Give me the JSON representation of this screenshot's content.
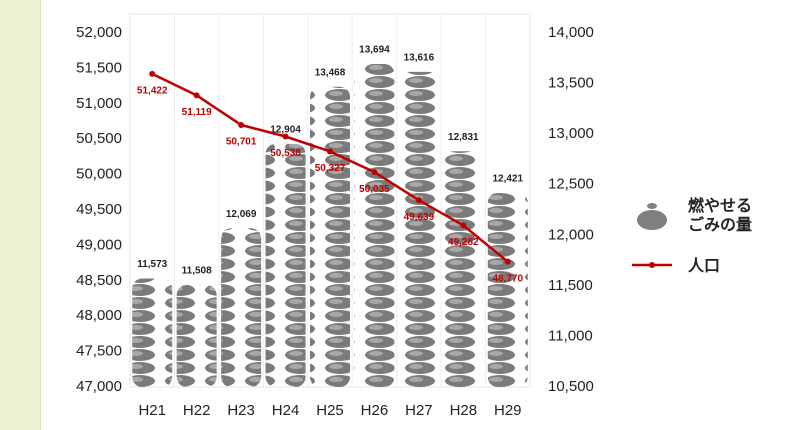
{
  "chart_data": {
    "type": "bar-line",
    "categories": [
      "H21",
      "H22",
      "H23",
      "H24",
      "H25",
      "H26",
      "H27",
      "H28",
      "H29"
    ],
    "series": [
      {
        "name": "燃やせるごみの量",
        "type": "bar",
        "axis": "y2",
        "color": "#7f7f7f",
        "values": [
          11573,
          11508,
          12069,
          12904,
          13468,
          13694,
          13616,
          12831,
          12421
        ],
        "value_labels": [
          "11,573",
          "11,508",
          "12,069",
          "12,904",
          "13,468",
          "13,694",
          "13,616",
          "12,831",
          "12,421"
        ]
      },
      {
        "name": "人口",
        "type": "line",
        "axis": "y",
        "color": "#c00000",
        "values": [
          51422,
          51119,
          50701,
          50538,
          50327,
          50035,
          49639,
          49282,
          48770
        ],
        "value_labels": [
          "51,422",
          "51,119",
          "50,701",
          "50,538",
          "50,327",
          "50,035",
          "49,639",
          "49,282",
          "48,770"
        ]
      }
    ],
    "ylim": [
      47000,
      52000
    ],
    "yticks": [
      {
        "value": 47000,
        "label": "47,000"
      },
      {
        "value": 47500,
        "label": "47,500"
      },
      {
        "value": 48000,
        "label": "48,000"
      },
      {
        "value": 48500,
        "label": "48,500"
      },
      {
        "value": 49000,
        "label": "49,000"
      },
      {
        "value": 49500,
        "label": "49,500"
      },
      {
        "value": 50000,
        "label": "50,000"
      },
      {
        "value": 50500,
        "label": "50,500"
      },
      {
        "value": 51000,
        "label": "51,000"
      },
      {
        "value": 51500,
        "label": "51,500"
      },
      {
        "value": 52000,
        "label": "52,000"
      }
    ],
    "y2lim": [
      10500,
      14000
    ],
    "y2ticks": [
      {
        "value": 10500,
        "label": "10,500"
      },
      {
        "value": 11000,
        "label": "11,000"
      },
      {
        "value": 11500,
        "label": "11,500"
      },
      {
        "value": 12000,
        "label": "12,000"
      },
      {
        "value": 12500,
        "label": "12,500"
      },
      {
        "value": 13000,
        "label": "13,000"
      },
      {
        "value": 13500,
        "label": "13,500"
      },
      {
        "value": 14000,
        "label": "14,000"
      }
    ],
    "legend": "right",
    "grid": false
  }
}
